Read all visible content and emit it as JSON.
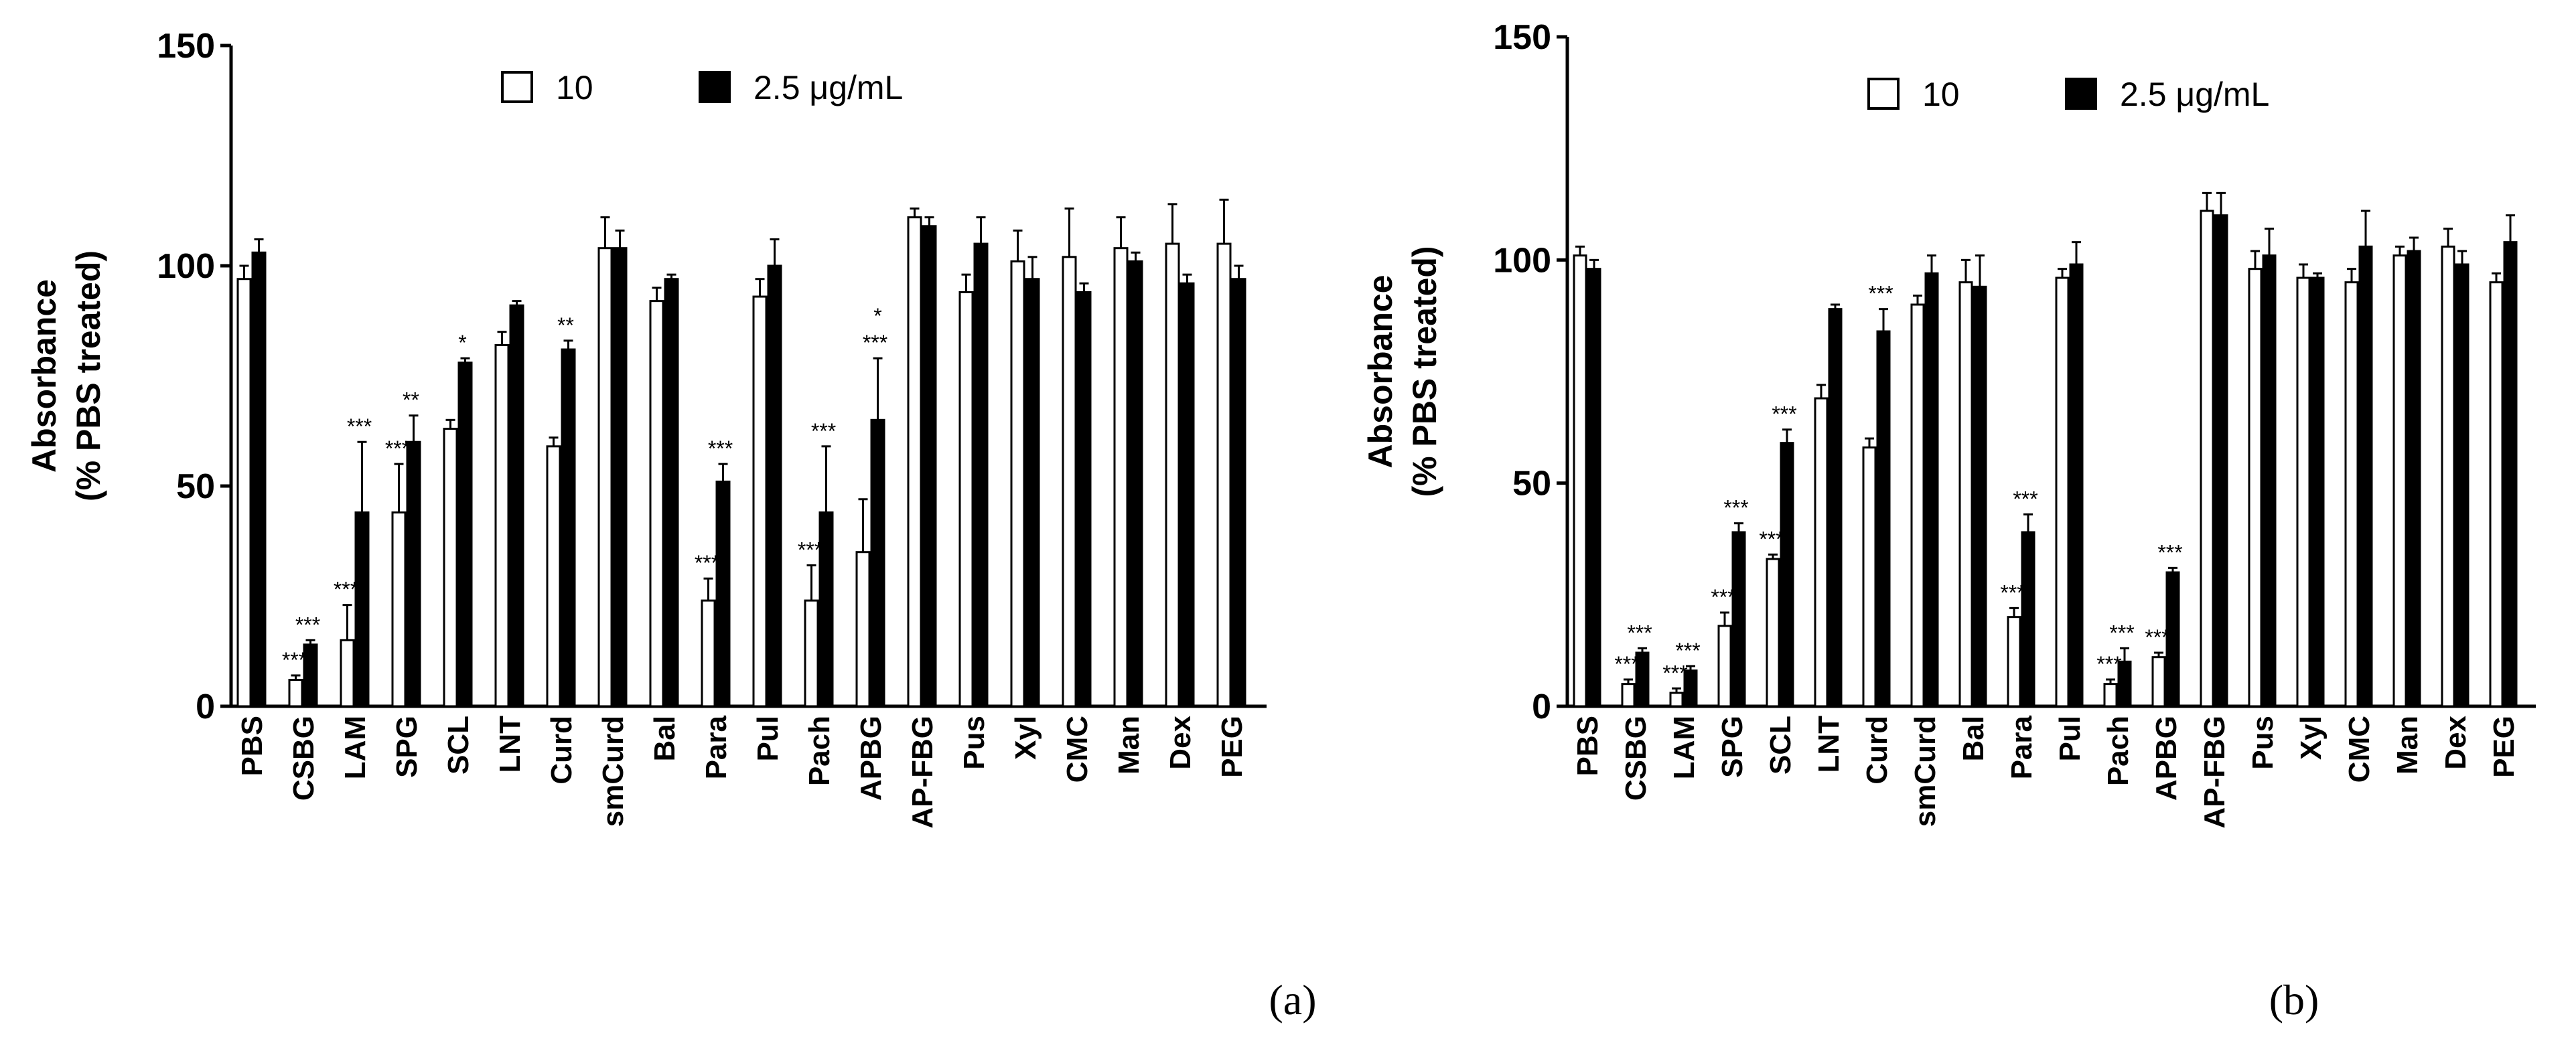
{
  "chart_data": [
    {
      "type": "bar",
      "panel_label": "(a)",
      "ylabel_line1": "Absorbance",
      "ylabel_line2": "(% PBS treated)",
      "ylim": [
        0,
        150
      ],
      "yticks": [
        0,
        50,
        100,
        150
      ],
      "legend_position": "top-center",
      "categories": [
        "PBS",
        "CSBG",
        "LAM",
        "SPG",
        "SCL",
        "LNT",
        "Curd",
        "smCurd",
        "Bal",
        "Para",
        "Pul",
        "Pach",
        "APBG",
        "AP-FBG",
        "Pus",
        "Xyl",
        "CMC",
        "Man",
        "Dex",
        "PEG"
      ],
      "series": [
        {
          "name": "10",
          "fill": "#ffffff",
          "values": [
            97,
            6,
            15,
            44,
            63,
            82,
            59,
            104,
            92,
            24,
            93,
            24,
            35,
            111,
            94,
            101,
            102,
            104,
            105,
            105
          ],
          "errors": [
            3,
            1,
            8,
            11,
            2,
            3,
            2,
            7,
            3,
            5,
            4,
            8,
            12,
            2,
            4,
            7,
            11,
            7,
            9,
            10
          ],
          "annotations": [
            "",
            "***",
            "***",
            "***",
            "",
            "",
            "",
            "",
            "",
            "***",
            "",
            "***",
            "",
            "",
            "",
            "",
            "",
            "",
            "",
            ""
          ]
        },
        {
          "name": "2.5 μg/mL",
          "fill": "#000000",
          "values": [
            103,
            14,
            44,
            60,
            78,
            91,
            81,
            104,
            97,
            51,
            100,
            44,
            65,
            109,
            105,
            97,
            94,
            101,
            96,
            97
          ],
          "errors": [
            3,
            1,
            16,
            6,
            1,
            1,
            2,
            4,
            1,
            4,
            6,
            15,
            14,
            2,
            6,
            5,
            2,
            2,
            2,
            3
          ],
          "annotations": [
            "",
            "***",
            "***",
            "**",
            "*",
            "",
            "**",
            "",
            "",
            "***",
            "",
            "***",
            "***",
            "",
            "",
            "",
            "",
            "",
            "",
            ""
          ],
          "annotations_upper": [
            "",
            "",
            "",
            "",
            "",
            "",
            "",
            "",
            "",
            "",
            "",
            "",
            "*",
            "",
            "",
            "",
            "",
            "",
            "",
            ""
          ]
        }
      ]
    },
    {
      "type": "bar",
      "panel_label": "(b)",
      "ylabel_line1": "Absorbance",
      "ylabel_line2": "(% PBS treated)",
      "ylim": [
        0,
        150
      ],
      "yticks": [
        0,
        50,
        100,
        150
      ],
      "legend_position": "top-center",
      "categories": [
        "PBS",
        "CSBG",
        "LAM",
        "SPG",
        "SCL",
        "LNT",
        "Curd",
        "smCurd",
        "Bal",
        "Para",
        "Pul",
        "Pach",
        "APBG",
        "AP-FBG",
        "Pus",
        "Xyl",
        "CMC",
        "Man",
        "Dex",
        "PEG"
      ],
      "series": [
        {
          "name": "10",
          "fill": "#ffffff",
          "values": [
            101,
            5,
            3,
            18,
            33,
            69,
            58,
            90,
            95,
            20,
            96,
            5,
            11,
            111,
            98,
            96,
            95,
            101,
            103,
            95
          ],
          "errors": [
            2,
            1,
            1,
            3,
            1,
            3,
            2,
            2,
            5,
            2,
            2,
            1,
            1,
            4,
            4,
            3,
            3,
            2,
            4,
            2
          ],
          "annotations": [
            "",
            "***",
            "***",
            "***",
            "***",
            "",
            "",
            "",
            "",
            "***",
            "",
            "***",
            "***",
            "",
            "",
            "",
            "",
            "",
            "",
            ""
          ]
        },
        {
          "name": "2.5 μg/mL",
          "fill": "#000000",
          "values": [
            98,
            12,
            8,
            39,
            59,
            89,
            84,
            97,
            94,
            39,
            99,
            10,
            30,
            110,
            101,
            96,
            103,
            102,
            99,
            104
          ],
          "errors": [
            2,
            1,
            1,
            2,
            3,
            1,
            5,
            4,
            7,
            4,
            5,
            3,
            1,
            5,
            6,
            1,
            8,
            3,
            3,
            6
          ],
          "annotations": [
            "",
            "***",
            "***",
            "***",
            "***",
            "",
            "***",
            "",
            "",
            "***",
            "",
            "***",
            "***",
            "",
            "",
            "",
            "",
            "",
            "",
            ""
          ]
        }
      ]
    }
  ]
}
